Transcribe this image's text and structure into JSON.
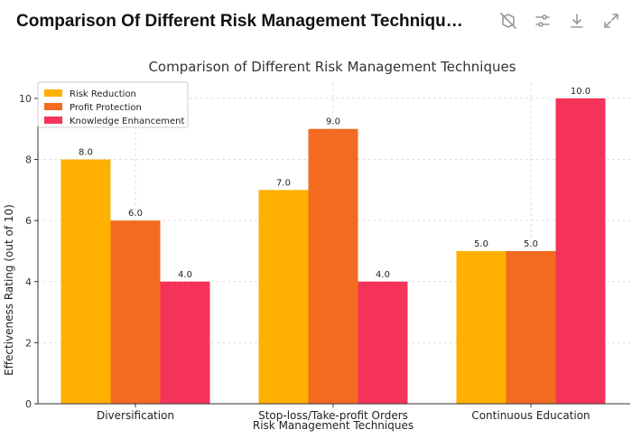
{
  "header": {
    "title": "Comparison Of Different Risk Management Techniqu…",
    "icons": [
      "hide-icon",
      "settings-sliders-icon",
      "download-icon",
      "expand-icon"
    ]
  },
  "chart_data": {
    "type": "bar",
    "title": "Comparison of Different Risk Management Techniques",
    "xlabel": "Risk Management Techniques",
    "ylabel": "Effectiveness Rating (out of 10)",
    "categories": [
      "Diversification",
      "Stop-loss/Take-profit Orders",
      "Continuous Education"
    ],
    "series": [
      {
        "name": "Risk Reduction",
        "values": [
          8.0,
          7.0,
          5.0
        ],
        "color": "#ffb000"
      },
      {
        "name": "Profit Protection",
        "values": [
          6.0,
          9.0,
          5.0
        ],
        "color": "#f26b21"
      },
      {
        "name": "Knowledge Enhancement",
        "values": [
          4.0,
          4.0,
          10.0
        ],
        "color": "#f5335a"
      }
    ],
    "ylim": [
      0,
      10.5
    ],
    "yticks": [
      "0",
      "2",
      "4",
      "6",
      "8",
      "10"
    ],
    "grid": true,
    "legend": "top-left"
  }
}
